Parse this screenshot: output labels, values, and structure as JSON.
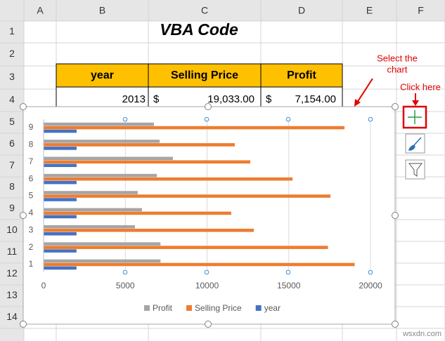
{
  "sheet": {
    "columns": [
      "A",
      "B",
      "C",
      "D",
      "E",
      "F"
    ],
    "rows": [
      1,
      2,
      3,
      4,
      5,
      6,
      7,
      8,
      9,
      10,
      11,
      12,
      13,
      14
    ],
    "title": "VBA Code",
    "table": {
      "header": [
        "year",
        "Selling Price",
        "Profit"
      ],
      "rows": [
        [
          "2013",
          "$",
          "19,033.00",
          "$",
          "7,154.00"
        ]
      ]
    }
  },
  "chart_data": {
    "type": "bar",
    "orientation": "horizontal",
    "categories": [
      "1",
      "2",
      "3",
      "4",
      "5",
      "6",
      "7",
      "8",
      "9"
    ],
    "series": [
      {
        "name": "Profit",
        "color": "#a5a5a5",
        "values": [
          7154,
          7150,
          5590,
          6020,
          5760,
          6930,
          7910,
          7100,
          6750
        ]
      },
      {
        "name": "Selling Price",
        "color": "#ed7d31",
        "values": [
          19033,
          17400,
          12860,
          11480,
          17550,
          15230,
          12650,
          11700,
          18410
        ]
      },
      {
        "name": "year",
        "color": "#4472c4",
        "values": [
          2013,
          2014,
          2015,
          2016,
          2017,
          2018,
          2019,
          2020,
          2021
        ]
      }
    ],
    "xlim": [
      0,
      20000
    ],
    "xticks": [
      0,
      5000,
      10000,
      15000,
      20000
    ],
    "grid": true,
    "legend": "bottom"
  },
  "annotations": {
    "select": [
      "Select the",
      "chart"
    ],
    "click": "Click here"
  },
  "watermark": "wsxdn.com"
}
